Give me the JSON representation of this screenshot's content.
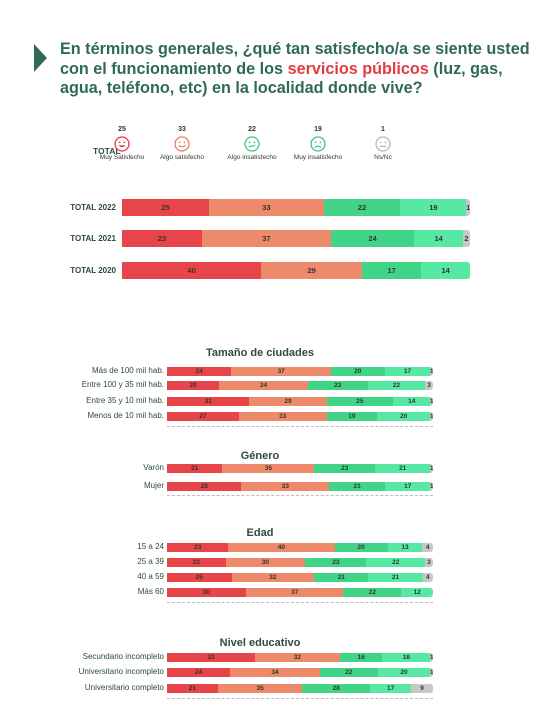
{
  "title": {
    "before": "En términos generales, ¿qué tan satisfecho/a se siente usted con el funcionamiento de los ",
    "highlight": "servicios públicos",
    "after": " (luz, gas, agua, teléfono, etc) en la localidad donde vive?"
  },
  "colors": {
    "title": "#2f6a58",
    "highlight": "#e23b42",
    "muy_satisfecho": "#e8454a",
    "algo_satisfecho": "#ec8a6a",
    "algo_insatisfecho": "#42d486",
    "muy_insatisfecho": "#57e8a4",
    "ns_nc": "#c8c8c8"
  },
  "summary": {
    "label": "TOTAL",
    "items": [
      {
        "label": "Muy Satisfecho",
        "value": "25",
        "face": "happy-face-icon",
        "color": "#e23b42"
      },
      {
        "label": "Algo satisfecho",
        "value": "33",
        "face": "smile-face-icon",
        "color": "#ea7c5c"
      },
      {
        "label": "Algo insatisfecho",
        "value": "22",
        "face": "neutral-face-icon",
        "color": "#3ec77e"
      },
      {
        "label": "Muy insatisfecho",
        "value": "19",
        "face": "sad-face-icon",
        "color": "#3ec77e"
      },
      {
        "label": "Ns/Nc",
        "value": "1",
        "face": "blank-face-icon",
        "color": "#b8b8b8"
      }
    ]
  },
  "chart_data": [
    {
      "type": "bar",
      "stacked": true,
      "orientation": "horizontal",
      "categories": [
        "TOTAL 2022",
        "TOTAL 2021",
        "TOTAL 2020"
      ],
      "series": [
        {
          "name": "Muy Satisfecho",
          "values": [
            25,
            23,
            40
          ]
        },
        {
          "name": "Algo satisfecho",
          "values": [
            33,
            37,
            29
          ]
        },
        {
          "name": "Algo insatisfecho",
          "values": [
            22,
            24,
            17
          ]
        },
        {
          "name": "Muy insatisfecho",
          "values": [
            19,
            14,
            14
          ]
        },
        {
          "name": "Ns/Nc",
          "values": [
            1,
            2,
            null
          ]
        }
      ]
    },
    {
      "type": "bar",
      "stacked": true,
      "orientation": "horizontal",
      "title": "Tamaño de ciudades",
      "categories": [
        "Más de 100 mil hab.",
        "Entre 100 y 35 mil hab.",
        "Entre 35 y 10 mil hab.",
        "Menos de 10 mil hab."
      ],
      "series": [
        {
          "name": "Muy Satisfecho",
          "values": [
            24,
            20,
            31,
            27
          ]
        },
        {
          "name": "Algo satisfecho",
          "values": [
            37,
            34,
            29,
            33
          ]
        },
        {
          "name": "Algo insatisfecho",
          "values": [
            20,
            23,
            25,
            19
          ]
        },
        {
          "name": "Muy insatisfecho",
          "values": [
            17,
            22,
            14,
            20
          ]
        },
        {
          "name": "Ns/Nc",
          "values": [
            1,
            3,
            1,
            1
          ]
        }
      ]
    },
    {
      "type": "bar",
      "stacked": true,
      "orientation": "horizontal",
      "title": "Género",
      "categories": [
        "Varón",
        "Mujer"
      ],
      "series": [
        {
          "name": "Muy Satisfecho",
          "values": [
            21,
            28
          ]
        },
        {
          "name": "Algo satisfecho",
          "values": [
            35,
            33
          ]
        },
        {
          "name": "Algo insatisfecho",
          "values": [
            23,
            21
          ]
        },
        {
          "name": "Muy insatisfecho",
          "values": [
            21,
            17
          ]
        },
        {
          "name": "Ns/Nc",
          "values": [
            1,
            1
          ]
        }
      ]
    },
    {
      "type": "bar",
      "stacked": true,
      "orientation": "horizontal",
      "title": "Edad",
      "categories": [
        "15 a 24",
        "25 a 39",
        "40 a 59",
        "Más 60"
      ],
      "series": [
        {
          "name": "Muy Satisfecho",
          "values": [
            23,
            22,
            25,
            30
          ]
        },
        {
          "name": "Algo satisfecho",
          "values": [
            40,
            30,
            32,
            37
          ]
        },
        {
          "name": "Algo insatisfecho",
          "values": [
            20,
            23,
            21,
            22
          ]
        },
        {
          "name": "Muy insatisfecho",
          "values": [
            13,
            22,
            21,
            12
          ]
        },
        {
          "name": "Ns/Nc",
          "values": [
            4,
            3,
            4,
            null
          ]
        }
      ]
    },
    {
      "type": "bar",
      "stacked": true,
      "orientation": "horizontal",
      "title": "Nivel educativo",
      "categories": [
        "Secundario incompleto",
        "Universitario incompleto",
        "Universitario completo"
      ],
      "series": [
        {
          "name": "Muy Satisfecho",
          "values": [
            33,
            24,
            21
          ]
        },
        {
          "name": "Algo satisfecho",
          "values": [
            32,
            34,
            35
          ]
        },
        {
          "name": "Algo insatisfecho",
          "values": [
            16,
            22,
            28
          ]
        },
        {
          "name": "Muy insatisfecho",
          "values": [
            18,
            20,
            17
          ]
        },
        {
          "name": "Ns/Nc",
          "values": [
            1,
            1,
            9
          ]
        }
      ]
    }
  ]
}
